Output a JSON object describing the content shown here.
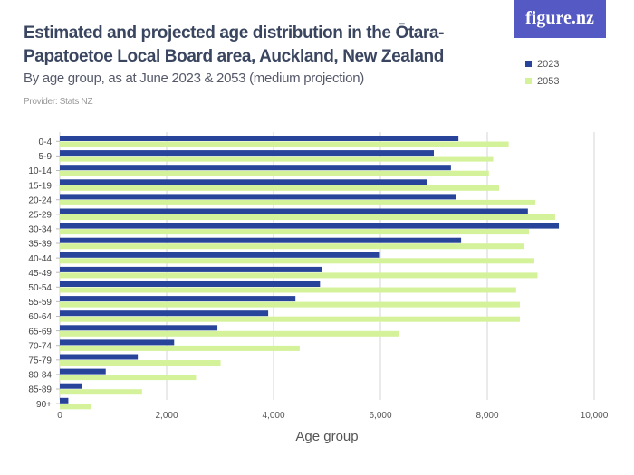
{
  "header": {
    "title": "Estimated and projected age distribution in the Ōtara-Papatoetoe Local Board area, Auckland, New Zealand",
    "subtitle": "By age group, as at June 2023 & 2053 (medium projection)",
    "provider": "Provider: Stats NZ",
    "logo": "figure.nz"
  },
  "chart_data": {
    "type": "bar",
    "orientation": "horizontal",
    "title": "Estimated and projected age distribution in the Ōtara-Papatoetoe Local Board area, Auckland, New Zealand",
    "xlabel": "Age group",
    "xlim": [
      0,
      10000
    ],
    "xticks": [
      0,
      2000,
      4000,
      6000,
      8000,
      10000
    ],
    "xtick_labels": [
      "0",
      "2,000",
      "4,000",
      "6,000",
      "8,000",
      "10,000"
    ],
    "grid": true,
    "legend": "top-right",
    "categories": [
      "0-4",
      "5-9",
      "10-14",
      "15-19",
      "20-24",
      "25-29",
      "30-34",
      "35-39",
      "40-44",
      "45-49",
      "50-54",
      "55-59",
      "60-64",
      "65-69",
      "70-74",
      "75-79",
      "80-84",
      "85-89",
      "90+"
    ],
    "series": [
      {
        "name": "2023",
        "color": "#27449a",
        "values": [
          7460,
          7000,
          7320,
          6870,
          7410,
          8760,
          9340,
          7510,
          5990,
          4910,
          4870,
          4410,
          3900,
          2950,
          2140,
          1460,
          860,
          420,
          160
        ]
      },
      {
        "name": "2053",
        "color": "#d4f29a",
        "values": [
          8400,
          8110,
          8030,
          8220,
          8900,
          9270,
          8780,
          8680,
          8880,
          8940,
          8540,
          8610,
          8610,
          6340,
          4490,
          3010,
          2550,
          1540,
          590
        ]
      }
    ]
  }
}
